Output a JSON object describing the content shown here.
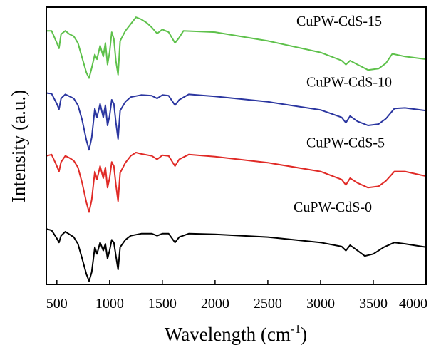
{
  "chart_data": {
    "type": "line",
    "title": "",
    "xlabel": "Wavelength (cm",
    "xlabel_sup": "-1",
    "xlabel_close": ")",
    "ylabel": "Intensity (a.u.)",
    "xlim": [
      400,
      4000
    ],
    "ylim": [
      0,
      4.1
    ],
    "grid": false,
    "legend": "none; series labelled inline above each trace",
    "x_ticks": [
      500,
      1000,
      1500,
      2000,
      2500,
      3000,
      3500,
      4000
    ],
    "x_tick_labels": [
      "500",
      "1000",
      "1500",
      "2000",
      "2500",
      "3000",
      "3500",
      "4000"
    ],
    "y_ticks": [],
    "series": [
      {
        "name": "CuPW-CdS-0",
        "color": "#000000",
        "offset": 0.0,
        "points": [
          [
            400,
            0.82
          ],
          [
            450,
            0.8
          ],
          [
            500,
            0.68
          ],
          [
            520,
            0.62
          ],
          [
            540,
            0.72
          ],
          [
            580,
            0.78
          ],
          [
            620,
            0.74
          ],
          [
            660,
            0.7
          ],
          [
            700,
            0.6
          ],
          [
            740,
            0.38
          ],
          [
            780,
            0.15
          ],
          [
            805,
            0.05
          ],
          [
            830,
            0.18
          ],
          [
            860,
            0.55
          ],
          [
            880,
            0.45
          ],
          [
            910,
            0.62
          ],
          [
            940,
            0.5
          ],
          [
            960,
            0.6
          ],
          [
            980,
            0.38
          ],
          [
            1000,
            0.5
          ],
          [
            1020,
            0.66
          ],
          [
            1040,
            0.62
          ],
          [
            1060,
            0.42
          ],
          [
            1080,
            0.22
          ],
          [
            1100,
            0.55
          ],
          [
            1150,
            0.66
          ],
          [
            1200,
            0.72
          ],
          [
            1300,
            0.75
          ],
          [
            1400,
            0.75
          ],
          [
            1450,
            0.72
          ],
          [
            1500,
            0.75
          ],
          [
            1560,
            0.75
          ],
          [
            1620,
            0.62
          ],
          [
            1660,
            0.7
          ],
          [
            1750,
            0.75
          ],
          [
            2000,
            0.74
          ],
          [
            2500,
            0.7
          ],
          [
            3000,
            0.62
          ],
          [
            3200,
            0.56
          ],
          [
            3240,
            0.5
          ],
          [
            3280,
            0.58
          ],
          [
            3350,
            0.5
          ],
          [
            3420,
            0.42
          ],
          [
            3500,
            0.45
          ],
          [
            3600,
            0.55
          ],
          [
            3700,
            0.62
          ],
          [
            3800,
            0.6
          ],
          [
            4000,
            0.55
          ]
        ]
      },
      {
        "name": "CuPW-CdS-5",
        "color": "#e02a26",
        "offset": 0.95,
        "points": [
          [
            400,
            0.95
          ],
          [
            450,
            0.97
          ],
          [
            500,
            0.8
          ],
          [
            520,
            0.72
          ],
          [
            540,
            0.86
          ],
          [
            580,
            0.95
          ],
          [
            620,
            0.92
          ],
          [
            660,
            0.88
          ],
          [
            700,
            0.78
          ],
          [
            740,
            0.55
          ],
          [
            780,
            0.26
          ],
          [
            805,
            0.12
          ],
          [
            830,
            0.3
          ],
          [
            860,
            0.72
          ],
          [
            880,
            0.6
          ],
          [
            910,
            0.8
          ],
          [
            940,
            0.62
          ],
          [
            960,
            0.78
          ],
          [
            980,
            0.48
          ],
          [
            1000,
            0.62
          ],
          [
            1020,
            0.86
          ],
          [
            1040,
            0.8
          ],
          [
            1060,
            0.52
          ],
          [
            1080,
            0.28
          ],
          [
            1100,
            0.7
          ],
          [
            1150,
            0.85
          ],
          [
            1200,
            0.95
          ],
          [
            1250,
            1.0
          ],
          [
            1300,
            0.98
          ],
          [
            1400,
            0.95
          ],
          [
            1450,
            0.9
          ],
          [
            1500,
            0.96
          ],
          [
            1560,
            0.95
          ],
          [
            1620,
            0.8
          ],
          [
            1660,
            0.9
          ],
          [
            1750,
            0.97
          ],
          [
            2000,
            0.94
          ],
          [
            2500,
            0.85
          ],
          [
            3000,
            0.72
          ],
          [
            3200,
            0.6
          ],
          [
            3240,
            0.52
          ],
          [
            3280,
            0.62
          ],
          [
            3350,
            0.55
          ],
          [
            3450,
            0.48
          ],
          [
            3550,
            0.5
          ],
          [
            3620,
            0.58
          ],
          [
            3700,
            0.72
          ],
          [
            3800,
            0.72
          ],
          [
            4000,
            0.65
          ]
        ]
      },
      {
        "name": "CuPW-CdS-10",
        "color": "#2b36a0",
        "offset": 1.85,
        "points": [
          [
            400,
            0.98
          ],
          [
            450,
            0.97
          ],
          [
            500,
            0.82
          ],
          [
            520,
            0.74
          ],
          [
            540,
            0.9
          ],
          [
            580,
            0.96
          ],
          [
            620,
            0.93
          ],
          [
            660,
            0.9
          ],
          [
            700,
            0.8
          ],
          [
            740,
            0.58
          ],
          [
            780,
            0.28
          ],
          [
            805,
            0.14
          ],
          [
            830,
            0.32
          ],
          [
            860,
            0.75
          ],
          [
            880,
            0.62
          ],
          [
            910,
            0.82
          ],
          [
            940,
            0.62
          ],
          [
            960,
            0.8
          ],
          [
            980,
            0.5
          ],
          [
            1000,
            0.64
          ],
          [
            1020,
            0.88
          ],
          [
            1040,
            0.82
          ],
          [
            1060,
            0.54
          ],
          [
            1080,
            0.3
          ],
          [
            1100,
            0.72
          ],
          [
            1150,
            0.85
          ],
          [
            1200,
            0.92
          ],
          [
            1300,
            0.95
          ],
          [
            1400,
            0.94
          ],
          [
            1450,
            0.9
          ],
          [
            1500,
            0.95
          ],
          [
            1560,
            0.94
          ],
          [
            1620,
            0.8
          ],
          [
            1660,
            0.88
          ],
          [
            1750,
            0.96
          ],
          [
            2000,
            0.93
          ],
          [
            2500,
            0.85
          ],
          [
            3000,
            0.73
          ],
          [
            3200,
            0.62
          ],
          [
            3240,
            0.54
          ],
          [
            3280,
            0.64
          ],
          [
            3350,
            0.56
          ],
          [
            3450,
            0.5
          ],
          [
            3550,
            0.52
          ],
          [
            3620,
            0.6
          ],
          [
            3700,
            0.75
          ],
          [
            3800,
            0.76
          ],
          [
            4000,
            0.72
          ]
        ]
      },
      {
        "name": "CuPW-CdS-15",
        "color": "#5ec14b",
        "offset": 2.75,
        "points": [
          [
            400,
            1.0
          ],
          [
            450,
            1.0
          ],
          [
            500,
            0.82
          ],
          [
            520,
            0.74
          ],
          [
            540,
            0.95
          ],
          [
            580,
            1.0
          ],
          [
            620,
            0.95
          ],
          [
            660,
            0.92
          ],
          [
            700,
            0.82
          ],
          [
            740,
            0.6
          ],
          [
            780,
            0.38
          ],
          [
            805,
            0.3
          ],
          [
            830,
            0.45
          ],
          [
            860,
            0.65
          ],
          [
            880,
            0.58
          ],
          [
            910,
            0.78
          ],
          [
            940,
            0.62
          ],
          [
            960,
            0.82
          ],
          [
            980,
            0.5
          ],
          [
            1000,
            0.68
          ],
          [
            1020,
            0.98
          ],
          [
            1040,
            0.88
          ],
          [
            1060,
            0.55
          ],
          [
            1080,
            0.35
          ],
          [
            1100,
            0.85
          ],
          [
            1150,
            1.0
          ],
          [
            1200,
            1.1
          ],
          [
            1250,
            1.2
          ],
          [
            1300,
            1.17
          ],
          [
            1350,
            1.12
          ],
          [
            1400,
            1.05
          ],
          [
            1450,
            0.96
          ],
          [
            1500,
            1.02
          ],
          [
            1560,
            0.98
          ],
          [
            1620,
            0.82
          ],
          [
            1660,
            0.9
          ],
          [
            1700,
            1.0
          ],
          [
            2000,
            0.98
          ],
          [
            2500,
            0.85
          ],
          [
            3000,
            0.68
          ],
          [
            3200,
            0.56
          ],
          [
            3240,
            0.5
          ],
          [
            3280,
            0.56
          ],
          [
            3350,
            0.5
          ],
          [
            3450,
            0.42
          ],
          [
            3550,
            0.44
          ],
          [
            3620,
            0.52
          ],
          [
            3680,
            0.66
          ],
          [
            3800,
            0.62
          ],
          [
            4000,
            0.58
          ]
        ]
      }
    ]
  }
}
